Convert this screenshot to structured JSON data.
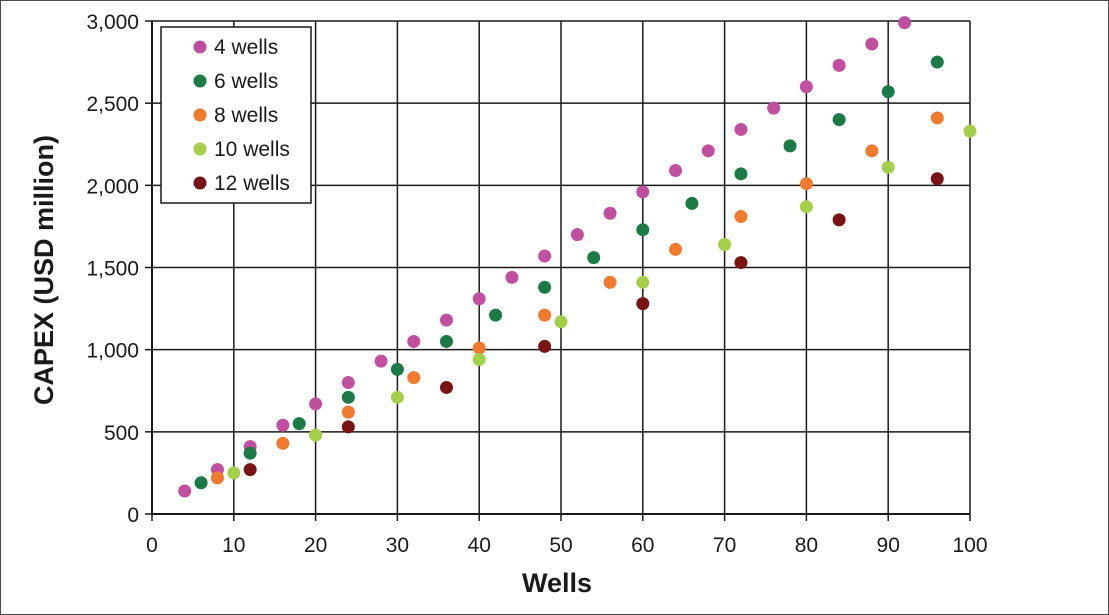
{
  "chart_data": {
    "type": "scatter",
    "title": "",
    "xlabel": "Wells",
    "ylabel": "CAPEX (USD million)",
    "xlim": [
      0,
      100
    ],
    "ylim": [
      0,
      3000
    ],
    "xticks": [
      "0",
      "10",
      "20",
      "30",
      "40",
      "50",
      "60",
      "70",
      "80",
      "90",
      "100"
    ],
    "yticks": [
      "0",
      "500",
      "1,000",
      "1,500",
      "2,000",
      "2,500",
      "3,000"
    ],
    "grid": true,
    "legend_position": "top-left",
    "series": [
      {
        "name": "4 wells",
        "color": "#c0509f",
        "points": [
          [
            4,
            140
          ],
          [
            8,
            270
          ],
          [
            12,
            410
          ],
          [
            16,
            540
          ],
          [
            20,
            670
          ],
          [
            24,
            800
          ],
          [
            28,
            930
          ],
          [
            32,
            1050
          ],
          [
            36,
            1180
          ],
          [
            40,
            1310
          ],
          [
            44,
            1440
          ],
          [
            48,
            1570
          ],
          [
            52,
            1700
          ],
          [
            56,
            1830
          ],
          [
            60,
            1960
          ],
          [
            64,
            2090
          ],
          [
            68,
            2210
          ],
          [
            72,
            2340
          ],
          [
            76,
            2470
          ],
          [
            80,
            2600
          ],
          [
            84,
            2730
          ],
          [
            88,
            2860
          ],
          [
            92,
            2990
          ]
        ]
      },
      {
        "name": "6 wells",
        "color": "#1b7a45",
        "points": [
          [
            6,
            190
          ],
          [
            12,
            370
          ],
          [
            18,
            550
          ],
          [
            24,
            710
          ],
          [
            30,
            880
          ],
          [
            36,
            1050
          ],
          [
            42,
            1210
          ],
          [
            48,
            1380
          ],
          [
            54,
            1560
          ],
          [
            60,
            1730
          ],
          [
            66,
            1890
          ],
          [
            72,
            2070
          ],
          [
            78,
            2240
          ],
          [
            84,
            2400
          ],
          [
            90,
            2570
          ],
          [
            96,
            2750
          ]
        ]
      },
      {
        "name": "8 wells",
        "color": "#f07a2e",
        "points": [
          [
            8,
            220
          ],
          [
            16,
            430
          ],
          [
            24,
            620
          ],
          [
            32,
            830
          ],
          [
            40,
            1010
          ],
          [
            48,
            1210
          ],
          [
            56,
            1410
          ],
          [
            64,
            1610
          ],
          [
            72,
            1810
          ],
          [
            80,
            2010
          ],
          [
            88,
            2210
          ],
          [
            96,
            2410
          ]
        ]
      },
      {
        "name": "10 wells",
        "color": "#a4cf4b",
        "points": [
          [
            10,
            250
          ],
          [
            20,
            480
          ],
          [
            30,
            710
          ],
          [
            40,
            940
          ],
          [
            50,
            1170
          ],
          [
            60,
            1410
          ],
          [
            70,
            1640
          ],
          [
            80,
            1870
          ],
          [
            90,
            2110
          ],
          [
            100,
            2330
          ]
        ]
      },
      {
        "name": "12 wells",
        "color": "#7a1414",
        "points": [
          [
            12,
            270
          ],
          [
            24,
            530
          ],
          [
            36,
            770
          ],
          [
            48,
            1020
          ],
          [
            60,
            1280
          ],
          [
            72,
            1530
          ],
          [
            84,
            1790
          ],
          [
            96,
            2040
          ]
        ]
      }
    ]
  }
}
